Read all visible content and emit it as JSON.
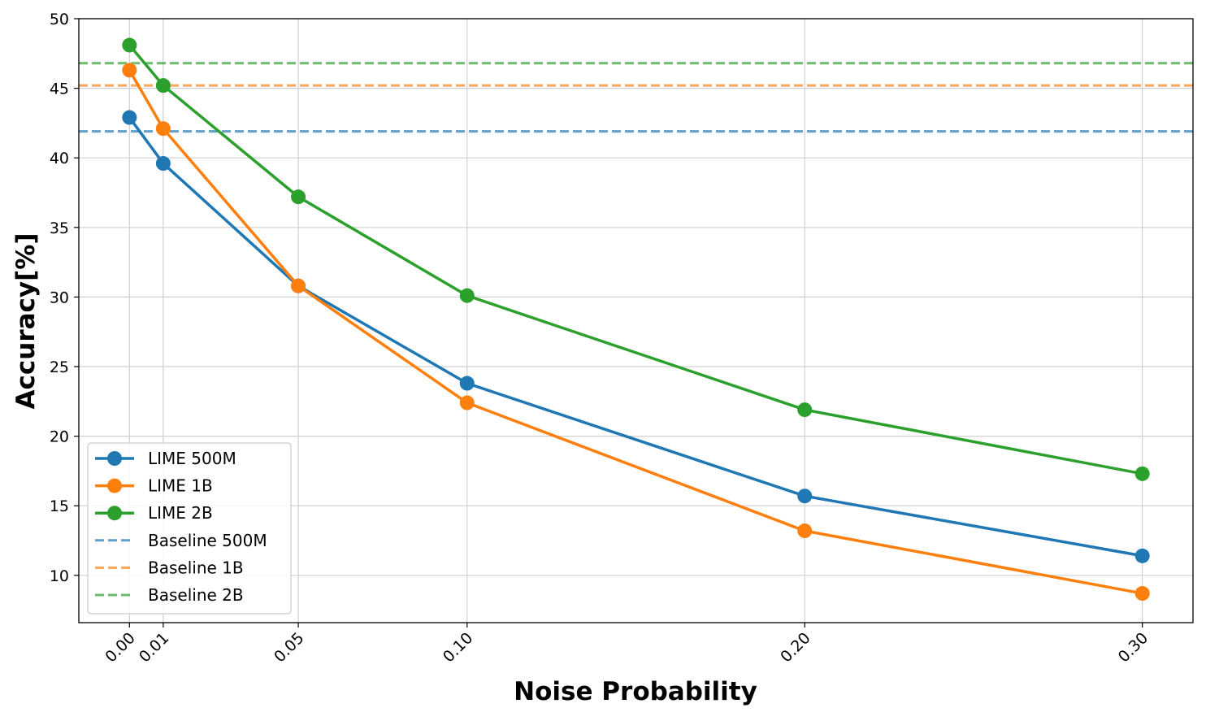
{
  "chart_data": {
    "type": "line",
    "title": "",
    "xlabel": "Noise Probability",
    "ylabel": "Accuracy[%]",
    "x": [
      0.0,
      0.01,
      0.05,
      0.1,
      0.2,
      0.3
    ],
    "x_tick_labels": [
      "0.00",
      "0.01",
      "0.05",
      "0.10",
      "0.20",
      "0.30"
    ],
    "y_ticks": [
      10,
      15,
      20,
      25,
      30,
      35,
      40,
      45,
      50
    ],
    "y_tick_labels": [
      "10",
      "15",
      "20",
      "25",
      "30",
      "35",
      "40",
      "45",
      "50"
    ],
    "xlim": [
      -0.015,
      0.315
    ],
    "ylim": [
      6.6,
      50
    ],
    "grid": true,
    "legend_position": "lower-left",
    "series": [
      {
        "name": "LIME 500M",
        "color": "#1f77b4",
        "style": "solid-marker",
        "values": [
          42.9,
          39.6,
          30.8,
          23.8,
          15.7,
          11.4
        ]
      },
      {
        "name": "LIME 1B",
        "color": "#ff7f0e",
        "style": "solid-marker",
        "values": [
          46.3,
          42.1,
          30.8,
          22.4,
          13.2,
          8.7
        ]
      },
      {
        "name": "LIME 2B",
        "color": "#2ca02c",
        "style": "solid-marker",
        "values": [
          48.1,
          45.2,
          37.2,
          30.1,
          21.9,
          17.3
        ]
      }
    ],
    "baselines": [
      {
        "name": "Baseline 500M",
        "color": "#1f77b4",
        "value": 41.9
      },
      {
        "name": "Baseline 1B",
        "color": "#ff7f0e",
        "value": 45.2
      },
      {
        "name": "Baseline 2B",
        "color": "#2ca02c",
        "value": 46.8
      }
    ]
  }
}
